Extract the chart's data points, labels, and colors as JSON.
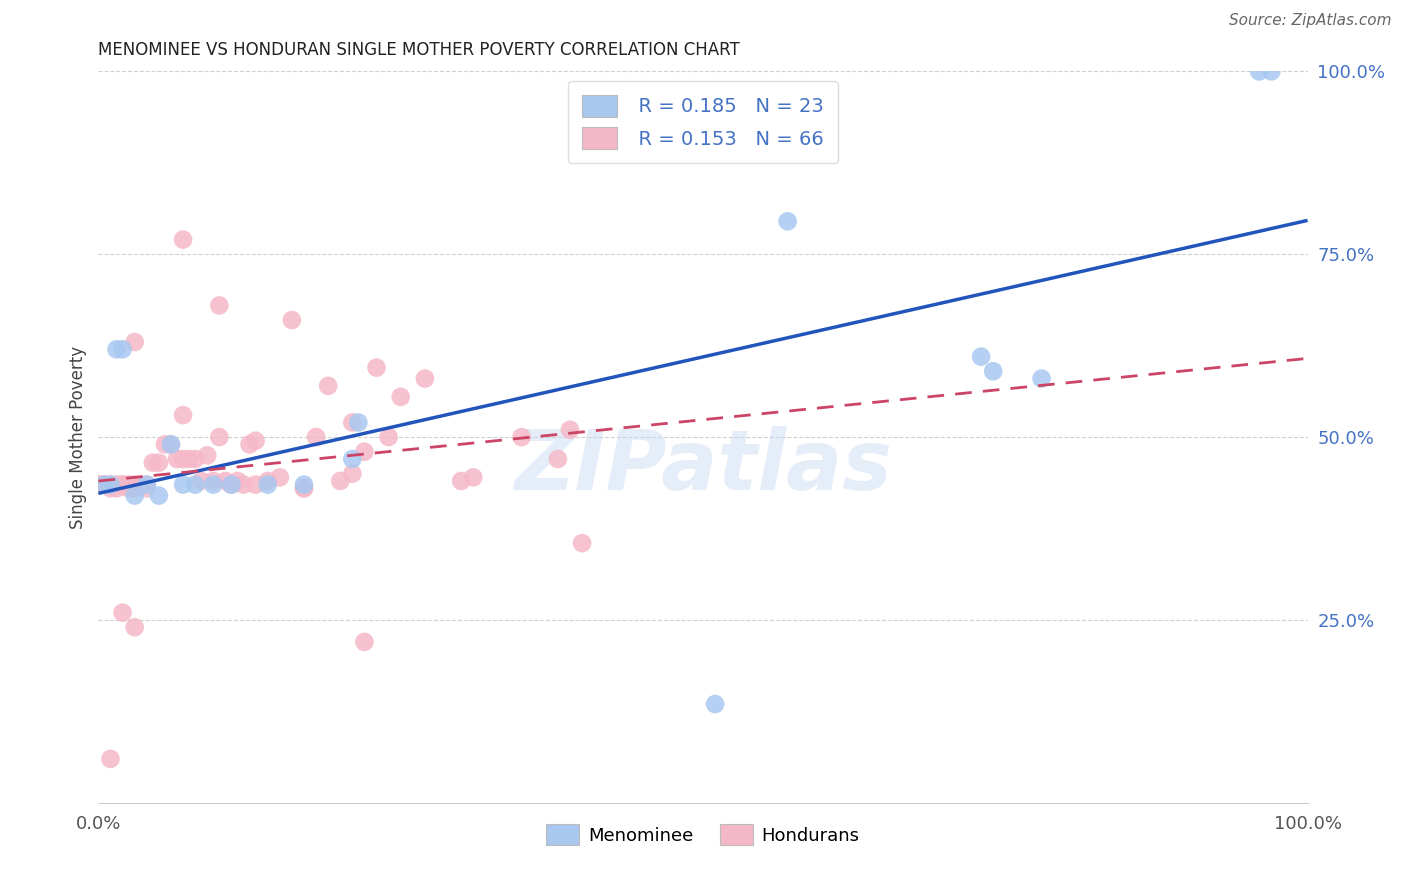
{
  "title": "MENOMINEE VS HONDURAN SINGLE MOTHER POVERTY CORRELATION CHART",
  "source": "Source: ZipAtlas.com",
  "ylabel": "Single Mother Poverty",
  "menominee_color": "#a8c8f0",
  "hondurans_color": "#f5b8c8",
  "menominee_line_color": "#2255bb",
  "hondurans_line_color": "#cc4466",
  "watermark": "ZIPatlas",
  "legend_r_men": "R = 0.185",
  "legend_n_men": "N = 23",
  "legend_r_hon": "R = 0.153",
  "legend_n_hon": "N = 66",
  "xlim": [
    0.0,
    1.0
  ],
  "ylim": [
    0.0,
    1.0
  ],
  "menominee_x": [
    0.005,
    0.01,
    0.015,
    0.02,
    0.03,
    0.04,
    0.05,
    0.06,
    0.07,
    0.08,
    0.095,
    0.11,
    0.14,
    0.17,
    0.21,
    0.215,
    0.57,
    0.73,
    0.74,
    0.78,
    0.96,
    0.97,
    0.51
  ],
  "menominee_y": [
    0.435,
    0.435,
    0.62,
    0.62,
    0.42,
    0.435,
    0.42,
    0.49,
    0.435,
    0.435,
    0.435,
    0.435,
    0.435,
    0.435,
    0.47,
    0.52,
    0.795,
    0.61,
    0.59,
    0.58,
    1.0,
    1.0,
    0.135
  ],
  "hondurans_x": [
    0.0,
    0.0,
    0.0,
    0.005,
    0.005,
    0.01,
    0.01,
    0.015,
    0.015,
    0.02,
    0.02,
    0.025,
    0.025,
    0.03,
    0.03,
    0.035,
    0.04,
    0.04,
    0.045,
    0.05,
    0.055,
    0.06,
    0.065,
    0.07,
    0.07,
    0.075,
    0.08,
    0.085,
    0.09,
    0.095,
    0.1,
    0.105,
    0.11,
    0.115,
    0.12,
    0.125,
    0.13,
    0.14,
    0.15,
    0.16,
    0.17,
    0.18,
    0.19,
    0.2,
    0.21,
    0.22,
    0.23,
    0.25,
    0.27,
    0.3,
    0.31,
    0.35,
    0.39,
    0.4,
    0.03,
    0.07,
    0.1,
    0.13,
    0.17,
    0.21,
    0.01,
    0.02,
    0.24,
    0.38,
    0.22,
    0.03
  ],
  "hondurans_y": [
    0.435,
    0.435,
    0.435,
    0.435,
    0.435,
    0.435,
    0.43,
    0.435,
    0.43,
    0.435,
    0.435,
    0.43,
    0.435,
    0.435,
    0.43,
    0.435,
    0.43,
    0.435,
    0.465,
    0.465,
    0.49,
    0.49,
    0.47,
    0.53,
    0.47,
    0.47,
    0.47,
    0.44,
    0.475,
    0.44,
    0.5,
    0.44,
    0.435,
    0.44,
    0.435,
    0.49,
    0.495,
    0.44,
    0.445,
    0.66,
    0.43,
    0.5,
    0.57,
    0.44,
    0.45,
    0.48,
    0.595,
    0.555,
    0.58,
    0.44,
    0.445,
    0.5,
    0.51,
    0.355,
    0.63,
    0.77,
    0.68,
    0.435,
    0.43,
    0.52,
    0.06,
    0.26,
    0.5,
    0.47,
    0.22,
    0.24
  ]
}
